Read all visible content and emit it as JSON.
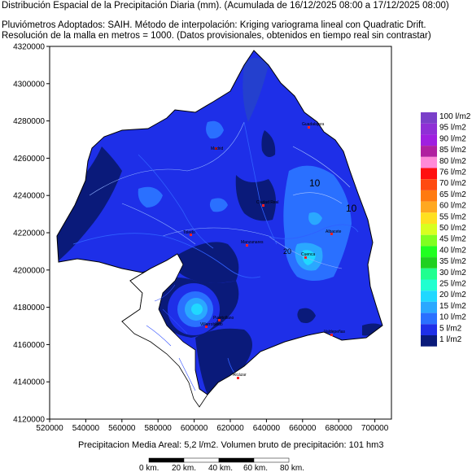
{
  "header": {
    "title": "Distribución Espacial de la Precipitación Diaria (mm). (Acumulada de 16/12/2025 08:00 a 17/12/2025 08:00)",
    "method": "Pluviómetros Adoptados: SAIH.  Método de interpolación: Kriging variograma lineal con Quadratic Drift.",
    "resolution": "Resolución de la malla en metros = 1000. (Datos provisionales, obtenidos en tiempo real sin contrastar)"
  },
  "axes": {
    "y_ticks": [
      "4320000",
      "4300000",
      "4280000",
      "4260000",
      "4240000",
      "4220000",
      "4200000",
      "4180000",
      "4160000",
      "4140000",
      "4120000"
    ],
    "x_ticks": [
      "520000",
      "540000",
      "560000",
      "580000",
      "600000",
      "620000",
      "640000",
      "660000",
      "680000",
      "700000"
    ]
  },
  "legend": {
    "items": [
      {
        "label": "100 l/m2",
        "color": "#7a3fc9"
      },
      {
        "label": "95 l/m2",
        "color": "#8f2fd6"
      },
      {
        "label": "90 l/m2",
        "color": "#9f1fe0"
      },
      {
        "label": "85 l/m2",
        "color": "#b020a0"
      },
      {
        "label": "80 l/m2",
        "color": "#ff8ad8"
      },
      {
        "label": "76 l/m2",
        "color": "#ff1010"
      },
      {
        "label": "70 l/m2",
        "color": "#ff4a10"
      },
      {
        "label": "65 l/m2",
        "color": "#ff7a10"
      },
      {
        "label": "60 l/m2",
        "color": "#ffa820"
      },
      {
        "label": "55 l/m2",
        "color": "#ffe020"
      },
      {
        "label": "50 l/m2",
        "color": "#d8ff20"
      },
      {
        "label": "45 l/m2",
        "color": "#80ff20"
      },
      {
        "label": "40 l/m2",
        "color": "#20ff20"
      },
      {
        "label": "35 l/m2",
        "color": "#20d020"
      },
      {
        "label": "30 l/m2",
        "color": "#20ff90"
      },
      {
        "label": "25 l/m2",
        "color": "#20ffd0"
      },
      {
        "label": "20 l/m2",
        "color": "#20d8ff"
      },
      {
        "label": "15 l/m2",
        "color": "#2aa8ff"
      },
      {
        "label": "10 l/m2",
        "color": "#2a70ff"
      },
      {
        "label": "5 l/m2",
        "color": "#1e2fe8"
      },
      {
        "label": "1 l/m2",
        "color": "#0a1a7a"
      }
    ]
  },
  "contour_labels": [
    "10",
    "10",
    "20"
  ],
  "cities": [
    "Madrid",
    "Guadalajara",
    "Cuenca",
    "Toledo",
    "Albacete",
    "Ciudad Real",
    "Alcázar",
    "Puertollano",
    "Valdepeñas",
    "Villarrobledo",
    "Manzanares"
  ],
  "footer": {
    "summary": "Precipitacion Media Areal: 5,2 l/m2. Volumen bruto de precipitación: 101 hm3"
  },
  "scalebar": {
    "labels": [
      "0 km.",
      "20 km.",
      "40 km.",
      "60 km.",
      "80 km."
    ]
  }
}
